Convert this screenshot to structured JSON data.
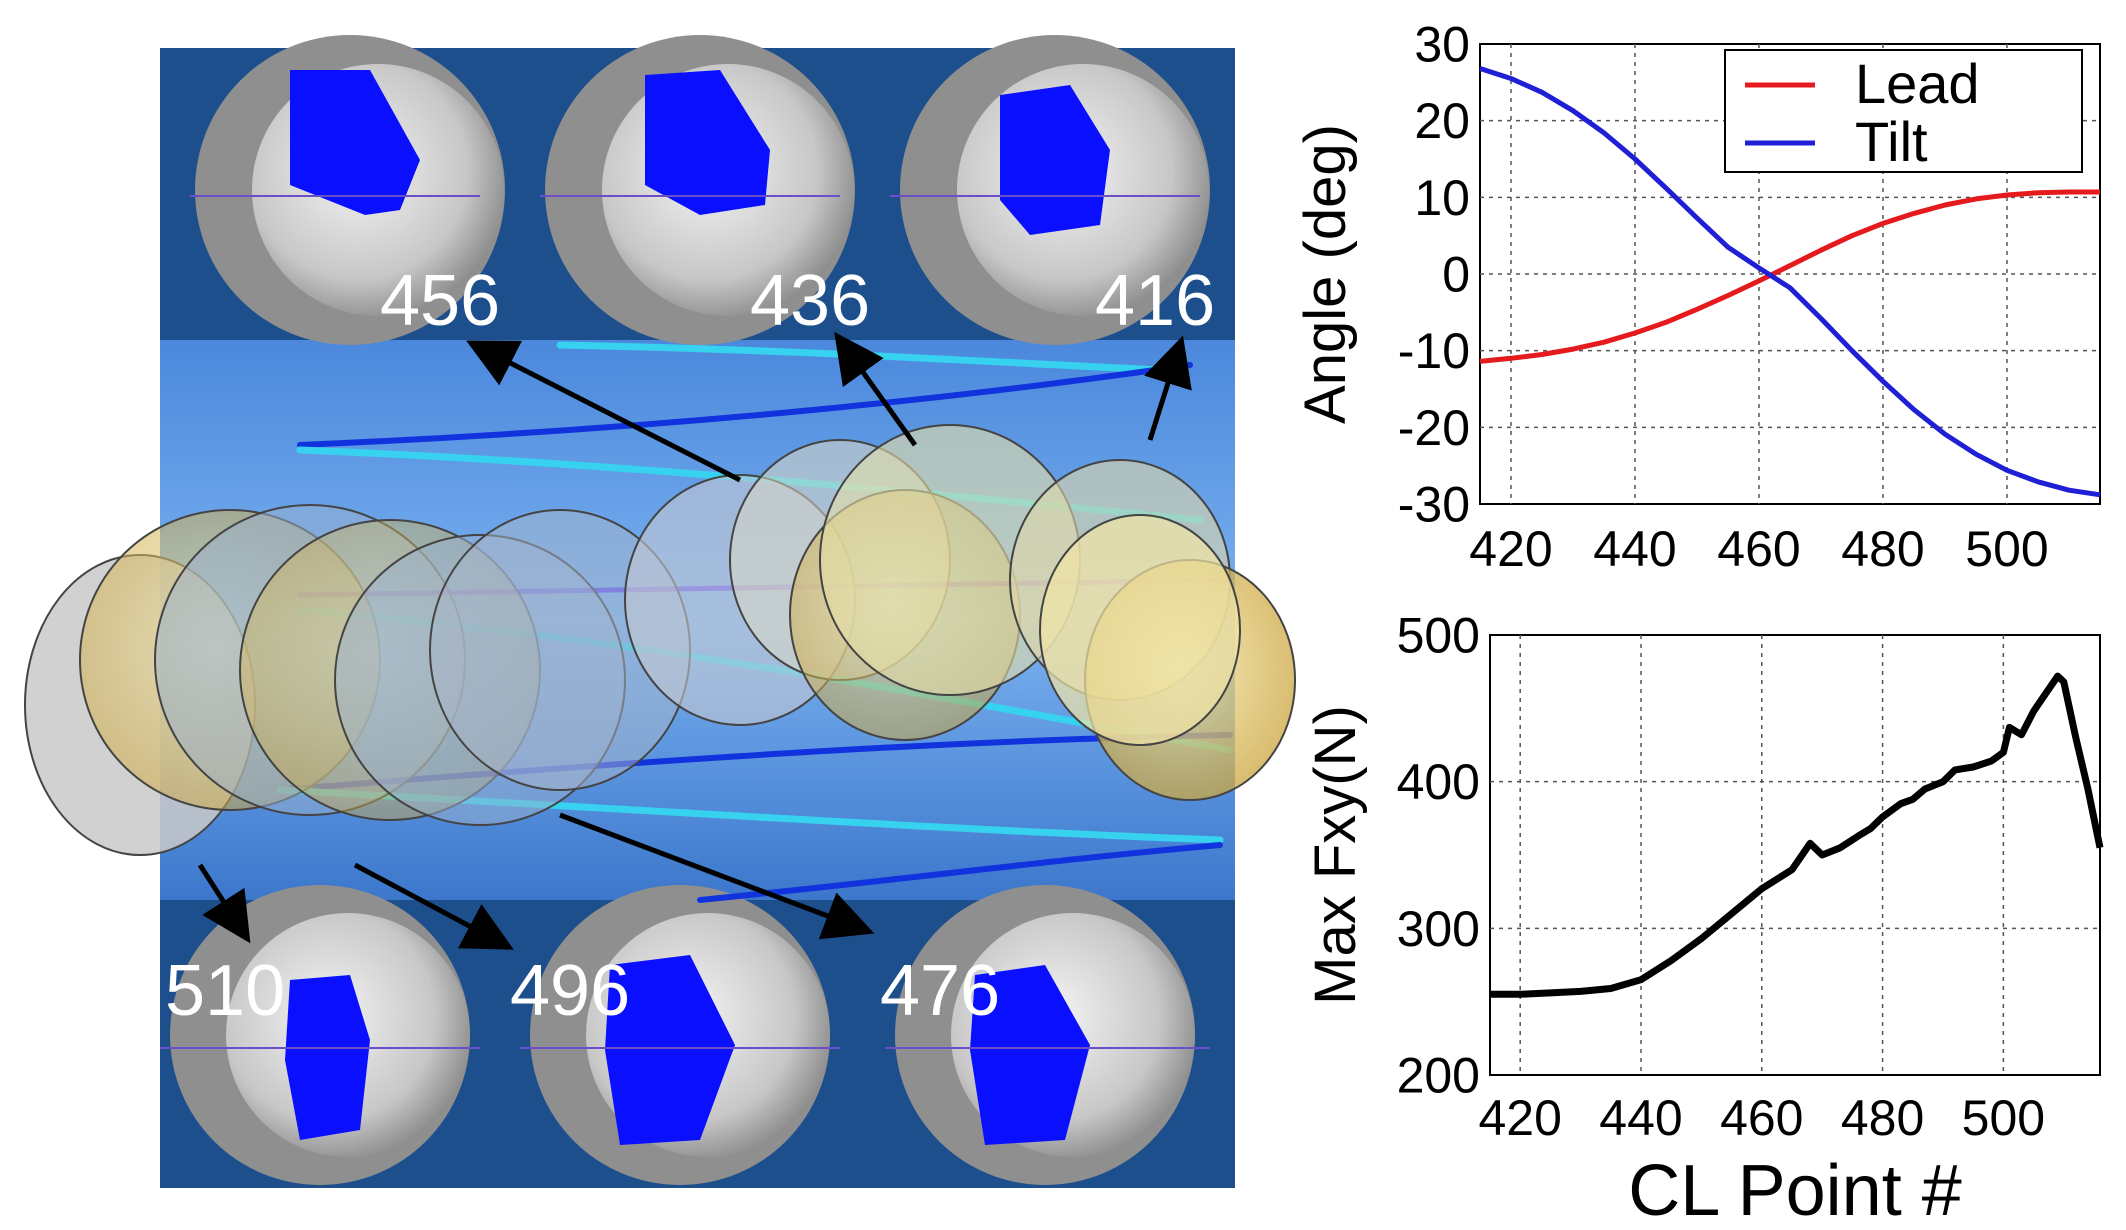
{
  "sim": {
    "top_labels": [
      "456",
      "436",
      "416"
    ],
    "bottom_labels": [
      "510",
      "496",
      "476"
    ]
  },
  "colors": {
    "lead": "#e41a1c",
    "tilt": "#1f1fd6",
    "fxy": "#000000",
    "panel_blue": "#1d4f8c",
    "engagement": "#0a10ff"
  },
  "chart_data": [
    {
      "type": "line",
      "title": "",
      "xlabel": "",
      "ylabel": "Angle (deg)",
      "xlim": [
        415,
        515
      ],
      "ylim": [
        -30,
        30
      ],
      "xticks": [
        420,
        440,
        460,
        480,
        500
      ],
      "yticks": [
        30,
        20,
        10,
        0,
        -10,
        -20,
        -30
      ],
      "grid": true,
      "legend": "top-right",
      "series": [
        {
          "name": "Lead",
          "x": [
            415,
            420,
            425,
            430,
            435,
            440,
            445,
            450,
            455,
            460,
            465,
            470,
            475,
            480,
            485,
            490,
            495,
            500,
            505,
            510,
            515
          ],
          "y": [
            -11.4,
            -11,
            -10.5,
            -9.8,
            -8.9,
            -7.7,
            -6.3,
            -4.6,
            -2.8,
            -0.9,
            1.1,
            3.1,
            5,
            6.6,
            7.9,
            9,
            9.8,
            10.3,
            10.6,
            10.7,
            10.7
          ]
        },
        {
          "name": "Tilt",
          "x": [
            415,
            420,
            425,
            430,
            435,
            440,
            445,
            450,
            455,
            460,
            465,
            470,
            475,
            480,
            485,
            490,
            495,
            500,
            505,
            510,
            515
          ],
          "y": [
            26.8,
            25.5,
            23.7,
            21.3,
            18.4,
            15,
            11.2,
            7.3,
            3.5,
            0.8,
            -1.8,
            -5.8,
            -10,
            -14,
            -17.7,
            -20.9,
            -23.5,
            -25.6,
            -27.1,
            -28.2,
            -28.8
          ]
        }
      ]
    },
    {
      "type": "line",
      "title": "",
      "xlabel": "CL Point #",
      "ylabel": "Max Fxy(N)",
      "xlim": [
        415,
        516
      ],
      "ylim": [
        200,
        500
      ],
      "xticks": [
        420,
        440,
        460,
        480,
        500
      ],
      "yticks": [
        200,
        300,
        400,
        500
      ],
      "grid": true,
      "series": [
        {
          "name": "Max Fxy",
          "x": [
            415,
            420,
            425,
            430,
            435,
            440,
            445,
            450,
            455,
            460,
            465,
            467,
            468,
            470,
            473,
            476,
            478,
            480,
            483,
            485,
            487,
            490,
            492,
            495,
            498,
            500,
            501,
            503,
            505,
            507,
            509,
            510,
            512,
            514,
            516
          ],
          "y": [
            255,
            255,
            256,
            257,
            259,
            265,
            278,
            293,
            310,
            327,
            340,
            352,
            358,
            350,
            355,
            363,
            368,
            376,
            385,
            388,
            395,
            400,
            408,
            410,
            414,
            420,
            437,
            432,
            448,
            460,
            472,
            468,
            430,
            395,
            355
          ]
        }
      ]
    }
  ]
}
